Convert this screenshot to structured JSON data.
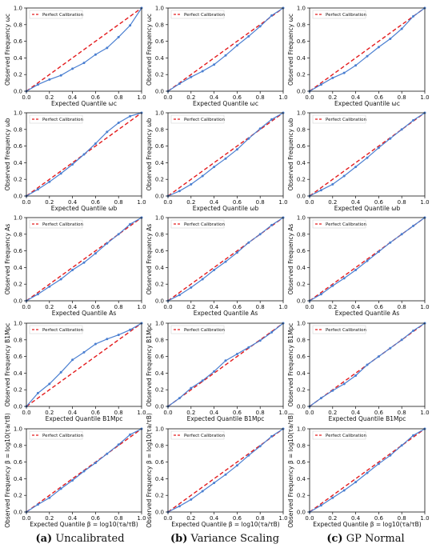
{
  "legend_label": "Perfect Calibration",
  "captions": [
    {
      "letter": "(a)",
      "text": "Uncalibrated"
    },
    {
      "letter": "(b)",
      "text": "Variance Scaling"
    },
    {
      "letter": "(c)",
      "text": "GP Normal"
    }
  ],
  "colors": {
    "series": "#4a7fd1",
    "reference": "#e31a1c",
    "axis": "#111111"
  },
  "chart_data": [
    {
      "type": "line",
      "row": 0,
      "col": 0,
      "xlabel": "Expected Quantile ωc",
      "ylabel": "Observed Frequency ωc",
      "xlim": [
        0,
        1
      ],
      "ylim": [
        0,
        1
      ],
      "xticks": [
        0,
        0.2,
        0.4,
        0.6,
        0.8,
        1
      ],
      "yticks": [
        0,
        0.2,
        0.4,
        0.6,
        0.8,
        1
      ],
      "legend": "top-left",
      "x": [
        0,
        0.1,
        0.2,
        0.3,
        0.4,
        0.5,
        0.6,
        0.7,
        0.8,
        0.9,
        1
      ],
      "y": [
        0,
        0.08,
        0.14,
        0.19,
        0.27,
        0.34,
        0.44,
        0.52,
        0.65,
        0.79,
        1
      ]
    },
    {
      "type": "line",
      "row": 0,
      "col": 1,
      "xlabel": "Expected Quantile ωc",
      "ylabel": "Observed Frequency ωc",
      "xlim": [
        0,
        1
      ],
      "ylim": [
        0,
        1
      ],
      "xticks": [
        0,
        0.2,
        0.4,
        0.6,
        0.8,
        1
      ],
      "yticks": [
        0,
        0.2,
        0.4,
        0.6,
        0.8,
        1
      ],
      "legend": "top-left",
      "x": [
        0,
        0.1,
        0.2,
        0.3,
        0.4,
        0.5,
        0.6,
        0.7,
        0.8,
        0.9,
        1
      ],
      "y": [
        0,
        0.09,
        0.17,
        0.24,
        0.32,
        0.43,
        0.55,
        0.66,
        0.78,
        0.91,
        1
      ]
    },
    {
      "type": "line",
      "row": 0,
      "col": 2,
      "xlabel": "Expected Quantile ωc",
      "ylabel": "Observed Frequency ωc",
      "xlim": [
        0,
        1
      ],
      "ylim": [
        0,
        1
      ],
      "xticks": [
        0,
        0.2,
        0.4,
        0.6,
        0.8,
        1
      ],
      "yticks": [
        0,
        0.2,
        0.4,
        0.6,
        0.8,
        1
      ],
      "legend": "top-left",
      "x": [
        0,
        0.1,
        0.2,
        0.3,
        0.4,
        0.5,
        0.6,
        0.7,
        0.8,
        0.9,
        1
      ],
      "y": [
        0,
        0.08,
        0.16,
        0.22,
        0.31,
        0.42,
        0.53,
        0.63,
        0.75,
        0.9,
        1
      ]
    },
    {
      "type": "line",
      "row": 1,
      "col": 0,
      "xlabel": "Expected Quantile ωb",
      "ylabel": "Observed Frequency ωb",
      "xlim": [
        0,
        1
      ],
      "ylim": [
        0,
        1
      ],
      "xticks": [
        0,
        0.2,
        0.4,
        0.6,
        0.8,
        1
      ],
      "yticks": [
        0,
        0.2,
        0.4,
        0.6,
        0.8,
        1
      ],
      "legend": "top-left",
      "x": [
        0,
        0.1,
        0.2,
        0.3,
        0.4,
        0.5,
        0.6,
        0.7,
        0.8,
        0.9,
        1
      ],
      "y": [
        0,
        0.08,
        0.17,
        0.27,
        0.38,
        0.5,
        0.63,
        0.77,
        0.88,
        0.96,
        1
      ]
    },
    {
      "type": "line",
      "row": 1,
      "col": 1,
      "xlabel": "Expected Quantile ωb",
      "ylabel": "Observed Frequency ωb",
      "xlim": [
        0,
        1
      ],
      "ylim": [
        0,
        1
      ],
      "xticks": [
        0,
        0.2,
        0.4,
        0.6,
        0.8,
        1
      ],
      "yticks": [
        0,
        0.2,
        0.4,
        0.6,
        0.8,
        1
      ],
      "legend": "top-left",
      "x": [
        0,
        0.1,
        0.2,
        0.3,
        0.4,
        0.5,
        0.6,
        0.7,
        0.8,
        0.9,
        1
      ],
      "y": [
        0,
        0.06,
        0.14,
        0.24,
        0.35,
        0.45,
        0.56,
        0.69,
        0.81,
        0.92,
        1
      ]
    },
    {
      "type": "line",
      "row": 1,
      "col": 2,
      "xlabel": "Expected Quantile ωb",
      "ylabel": "Observed Frequency ωb",
      "xlim": [
        0,
        1
      ],
      "ylim": [
        0,
        1
      ],
      "xticks": [
        0,
        0.2,
        0.4,
        0.6,
        0.8,
        1
      ],
      "yticks": [
        0,
        0.2,
        0.4,
        0.6,
        0.8,
        1
      ],
      "legend": "top-left",
      "x": [
        0,
        0.1,
        0.2,
        0.3,
        0.4,
        0.5,
        0.6,
        0.7,
        0.8,
        0.9,
        1
      ],
      "y": [
        0,
        0.07,
        0.14,
        0.24,
        0.35,
        0.46,
        0.58,
        0.69,
        0.8,
        0.91,
        1
      ]
    },
    {
      "type": "line",
      "row": 2,
      "col": 0,
      "xlabel": "Expected Quantile As",
      "ylabel": "Observed Frequency As",
      "xlim": [
        0,
        1
      ],
      "ylim": [
        0,
        1
      ],
      "xticks": [
        0,
        0.2,
        0.4,
        0.6,
        0.8,
        1
      ],
      "yticks": [
        0,
        0.2,
        0.4,
        0.6,
        0.8,
        1
      ],
      "legend": "top-left",
      "x": [
        0,
        0.1,
        0.2,
        0.3,
        0.4,
        0.5,
        0.6,
        0.7,
        0.8,
        0.9,
        1
      ],
      "y": [
        0,
        0.08,
        0.17,
        0.26,
        0.37,
        0.46,
        0.57,
        0.69,
        0.8,
        0.92,
        1
      ]
    },
    {
      "type": "line",
      "row": 2,
      "col": 1,
      "xlabel": "Expected Quantile As",
      "ylabel": "Observed Frequency As",
      "xlim": [
        0,
        1
      ],
      "ylim": [
        0,
        1
      ],
      "xticks": [
        0,
        0.2,
        0.4,
        0.6,
        0.8,
        1
      ],
      "yticks": [
        0,
        0.2,
        0.4,
        0.6,
        0.8,
        1
      ],
      "legend": "top-left",
      "x": [
        0,
        0.1,
        0.2,
        0.3,
        0.4,
        0.5,
        0.6,
        0.7,
        0.8,
        0.9,
        1
      ],
      "y": [
        0,
        0.07,
        0.16,
        0.26,
        0.37,
        0.47,
        0.58,
        0.7,
        0.8,
        0.91,
        1
      ]
    },
    {
      "type": "line",
      "row": 2,
      "col": 2,
      "xlabel": "Expected Quantile As",
      "ylabel": "Observed Frequency As",
      "xlim": [
        0,
        1
      ],
      "ylim": [
        0,
        1
      ],
      "xticks": [
        0,
        0.2,
        0.4,
        0.6,
        0.8,
        1
      ],
      "yticks": [
        0,
        0.2,
        0.4,
        0.6,
        0.8,
        1
      ],
      "legend": "top-left",
      "x": [
        0,
        0.1,
        0.2,
        0.3,
        0.4,
        0.5,
        0.6,
        0.7,
        0.8,
        0.9,
        1
      ],
      "y": [
        0,
        0.08,
        0.18,
        0.27,
        0.37,
        0.48,
        0.59,
        0.7,
        0.8,
        0.9,
        1
      ]
    },
    {
      "type": "line",
      "row": 3,
      "col": 0,
      "xlabel": "Expected Quantile B1Mpc",
      "ylabel": "Observed Frequency B1Mpc",
      "xlim": [
        0,
        1
      ],
      "ylim": [
        0,
        1
      ],
      "xticks": [
        0,
        0.2,
        0.4,
        0.6,
        0.8,
        1
      ],
      "yticks": [
        0,
        0.2,
        0.4,
        0.6,
        0.8,
        1
      ],
      "legend": "top-left",
      "x": [
        0,
        0.1,
        0.2,
        0.3,
        0.4,
        0.5,
        0.6,
        0.7,
        0.8,
        0.9,
        1
      ],
      "y": [
        0,
        0.16,
        0.27,
        0.41,
        0.56,
        0.65,
        0.75,
        0.81,
        0.86,
        0.92,
        1
      ]
    },
    {
      "type": "line",
      "row": 3,
      "col": 1,
      "xlabel": "Expected Quantile B1Mpc",
      "ylabel": "Observed Frequency B1Mpc",
      "xlim": [
        0,
        1
      ],
      "ylim": [
        0,
        1
      ],
      "xticks": [
        0,
        0.2,
        0.4,
        0.6,
        0.8,
        1
      ],
      "yticks": [
        0,
        0.2,
        0.4,
        0.6,
        0.8,
        1
      ],
      "legend": "top-left",
      "x": [
        0,
        0.1,
        0.2,
        0.3,
        0.4,
        0.5,
        0.6,
        0.7,
        0.8,
        0.9,
        1
      ],
      "y": [
        0,
        0.1,
        0.22,
        0.31,
        0.42,
        0.55,
        0.63,
        0.71,
        0.79,
        0.89,
        1
      ]
    },
    {
      "type": "line",
      "row": 3,
      "col": 2,
      "xlabel": "Expected Quantile B1Mpc",
      "ylabel": "Observed Frequency B1Mpc",
      "xlim": [
        0,
        1
      ],
      "ylim": [
        0,
        1
      ],
      "xticks": [
        0,
        0.2,
        0.4,
        0.6,
        0.8,
        1
      ],
      "yticks": [
        0,
        0.2,
        0.4,
        0.6,
        0.8,
        1
      ],
      "legend": "top-left",
      "x": [
        0,
        0.1,
        0.2,
        0.3,
        0.4,
        0.5,
        0.6,
        0.7,
        0.8,
        0.9,
        1
      ],
      "y": [
        0,
        0.1,
        0.19,
        0.27,
        0.37,
        0.5,
        0.6,
        0.7,
        0.8,
        0.91,
        1
      ]
    },
    {
      "type": "line",
      "row": 4,
      "col": 0,
      "xlabel": "Expected Quantile β = log10(τa/τB)",
      "ylabel": "Observed Frequency β = log10(τa/τB)",
      "xlim": [
        0,
        1
      ],
      "ylim": [
        0,
        1
      ],
      "xticks": [
        0,
        0.2,
        0.4,
        0.6,
        0.8,
        1
      ],
      "yticks": [
        0,
        0.2,
        0.4,
        0.6,
        0.8,
        1
      ],
      "legend": "top-left",
      "x": [
        0,
        0.1,
        0.2,
        0.3,
        0.4,
        0.5,
        0.6,
        0.7,
        0.8,
        0.9,
        1
      ],
      "y": [
        0,
        0.09,
        0.17,
        0.28,
        0.38,
        0.49,
        0.59,
        0.7,
        0.81,
        0.93,
        1
      ]
    },
    {
      "type": "line",
      "row": 4,
      "col": 1,
      "xlabel": "Expected Quantile β = log10(τa/τB)",
      "ylabel": "Observed Frequency β = log10(τa/τB)",
      "xlim": [
        0,
        1
      ],
      "ylim": [
        0,
        1
      ],
      "xticks": [
        0,
        0.2,
        0.4,
        0.6,
        0.8,
        1
      ],
      "yticks": [
        0,
        0.2,
        0.4,
        0.6,
        0.8,
        1
      ],
      "legend": "top-left",
      "x": [
        0,
        0.1,
        0.2,
        0.3,
        0.4,
        0.5,
        0.6,
        0.7,
        0.8,
        0.9,
        1
      ],
      "y": [
        0,
        0.07,
        0.15,
        0.25,
        0.35,
        0.45,
        0.56,
        0.68,
        0.79,
        0.91,
        1
      ]
    },
    {
      "type": "line",
      "row": 4,
      "col": 2,
      "xlabel": "Expected Quantile β = log10(τa/τB)",
      "ylabel": "Observed Frequency β = log10(τa/τB)",
      "xlim": [
        0,
        1
      ],
      "ylim": [
        0,
        1
      ],
      "xticks": [
        0,
        0.2,
        0.4,
        0.6,
        0.8,
        1
      ],
      "yticks": [
        0,
        0.2,
        0.4,
        0.6,
        0.8,
        1
      ],
      "legend": "top-left",
      "x": [
        0,
        0.1,
        0.2,
        0.3,
        0.4,
        0.5,
        0.6,
        0.7,
        0.8,
        0.9,
        1
      ],
      "y": [
        0,
        0.08,
        0.17,
        0.26,
        0.36,
        0.47,
        0.58,
        0.68,
        0.8,
        0.92,
        1
      ]
    }
  ]
}
